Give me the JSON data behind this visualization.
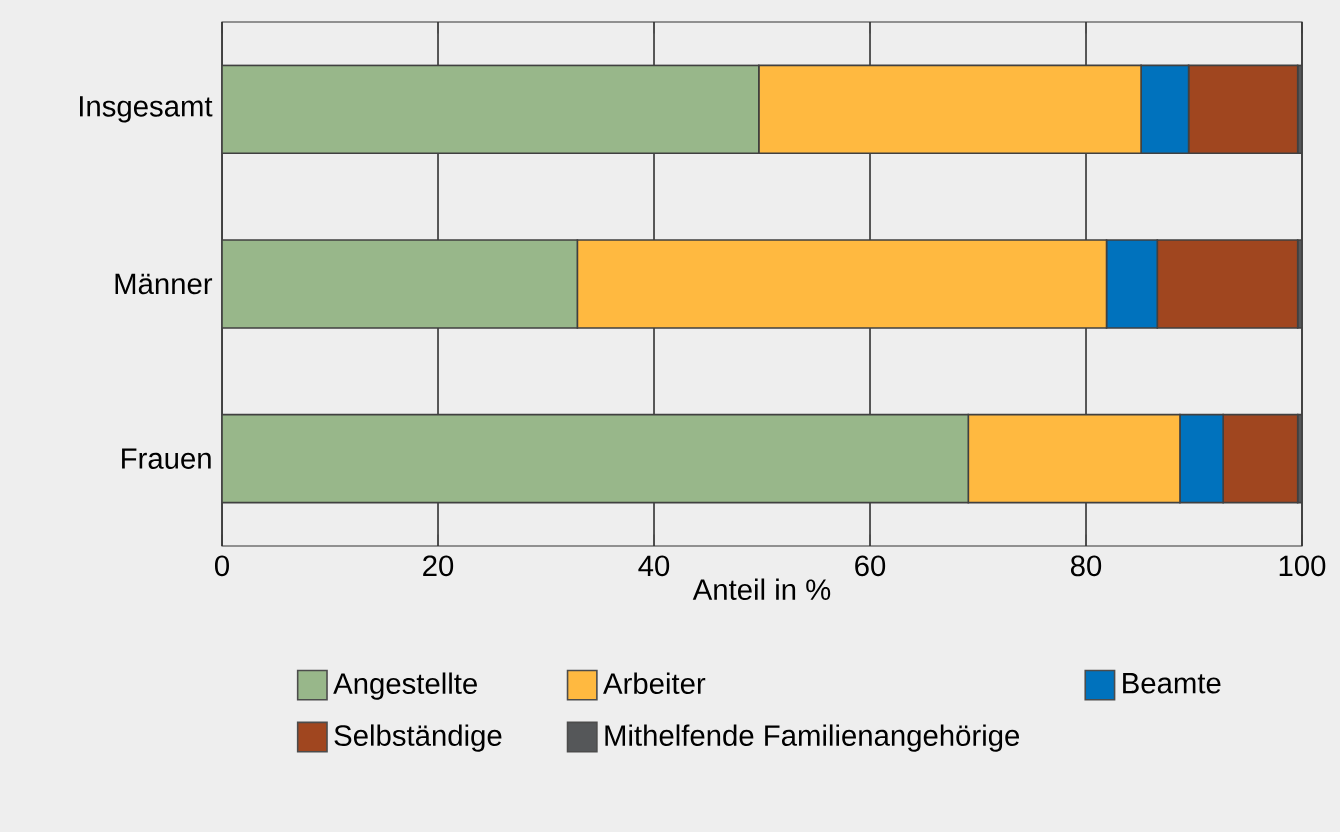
{
  "chart_data": {
    "type": "bar",
    "orientation": "horizontal",
    "stacked": true,
    "categories": [
      "Insgesamt",
      "Männer",
      "Frauen"
    ],
    "xlabel": "Anteil in %",
    "xlim": [
      0,
      100
    ],
    "xticks": [
      0,
      20,
      40,
      60,
      80,
      100
    ],
    "grid": "x",
    "legend": "bottom",
    "series": [
      {
        "name": "Angestellte",
        "color": "#98b78a",
        "values": [
          49.7,
          32.9,
          69.1
        ]
      },
      {
        "name": "Arbeiter",
        "color": "#ffb940",
        "values": [
          35.4,
          49.0,
          19.6
        ]
      },
      {
        "name": "Beamte",
        "color": "#0072bd",
        "values": [
          4.4,
          4.7,
          4.0
        ]
      },
      {
        "name": "Selbständige",
        "color": "#a0461f",
        "values": [
          10.1,
          13.0,
          6.9
        ]
      },
      {
        "name": "Mithelfende Familienangehörige",
        "color": "#555759",
        "values": [
          0.4,
          0.4,
          0.4
        ]
      }
    ]
  }
}
